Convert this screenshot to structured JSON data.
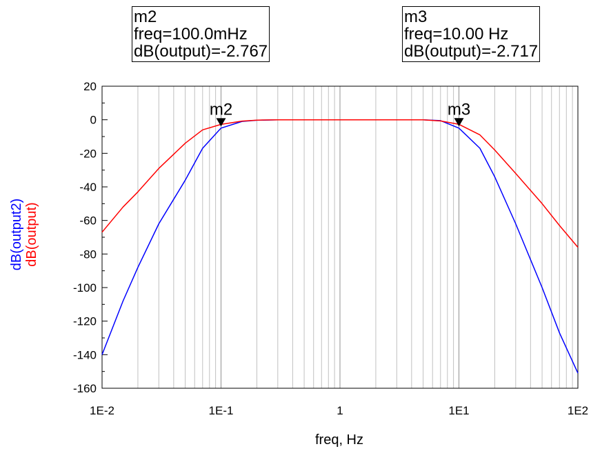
{
  "colors": {
    "series_output2": "#0000ff",
    "series_output": "#ff0000",
    "grid": "#c0c0c0",
    "axis": "#000000"
  },
  "markers": [
    {
      "name": "m2",
      "freq_text": "freq=100.0mHz",
      "value_text": "dB(output)=-2.767",
      "x": 0.1,
      "y": -2.767
    },
    {
      "name": "m3",
      "freq_text": "freq=10.00 Hz",
      "value_text": "dB(output)=-2.717",
      "x": 10,
      "y": -2.717
    }
  ],
  "chart_data": {
    "type": "line",
    "xlabel": "freq, Hz",
    "ylabel_series": [
      "dB(output2)",
      "dB(output)"
    ],
    "xscale": "log",
    "xlim": [
      0.01,
      100
    ],
    "ylim": [
      -160,
      20
    ],
    "xticks": [
      0.01,
      0.1,
      1,
      10,
      100
    ],
    "xtick_labels": [
      "1E-2",
      "1E-1",
      "1",
      "1E1",
      "1E2"
    ],
    "yticks": [
      20,
      0,
      -20,
      -40,
      -60,
      -80,
      -100,
      -120,
      -140,
      -160
    ],
    "ytick_labels": [
      "20",
      "0",
      "-20",
      "-40",
      "-60",
      "-80",
      "-100",
      "-120",
      "-140",
      "-160"
    ],
    "grid": true,
    "series": [
      {
        "name": "dB(output2)",
        "color": "#0000ff",
        "x": [
          0.01,
          0.015,
          0.02,
          0.03,
          0.05,
          0.07,
          0.1,
          0.15,
          0.2,
          0.3,
          0.5,
          1,
          2,
          3,
          5,
          7,
          10,
          15,
          20,
          30,
          50,
          70,
          100
        ],
        "y": [
          -140,
          -108,
          -88,
          -62,
          -36,
          -17,
          -5,
          -1,
          -0.3,
          0,
          0,
          0,
          0,
          0,
          0,
          -0.5,
          -5,
          -17,
          -34,
          -62,
          -100,
          -127,
          -151
        ]
      },
      {
        "name": "dB(output)",
        "color": "#ff0000",
        "x": [
          0.01,
          0.015,
          0.02,
          0.03,
          0.05,
          0.07,
          0.1,
          0.15,
          0.2,
          0.3,
          0.5,
          1,
          2,
          3,
          5,
          7,
          10,
          15,
          20,
          30,
          50,
          70,
          100
        ],
        "y": [
          -67,
          -52,
          -43,
          -29,
          -14,
          -6,
          -2.767,
          -0.8,
          -0.2,
          0,
          0,
          0,
          0,
          0,
          0,
          -0.7,
          -2.717,
          -9,
          -18,
          -32,
          -50,
          -63,
          -76
        ]
      }
    ]
  }
}
